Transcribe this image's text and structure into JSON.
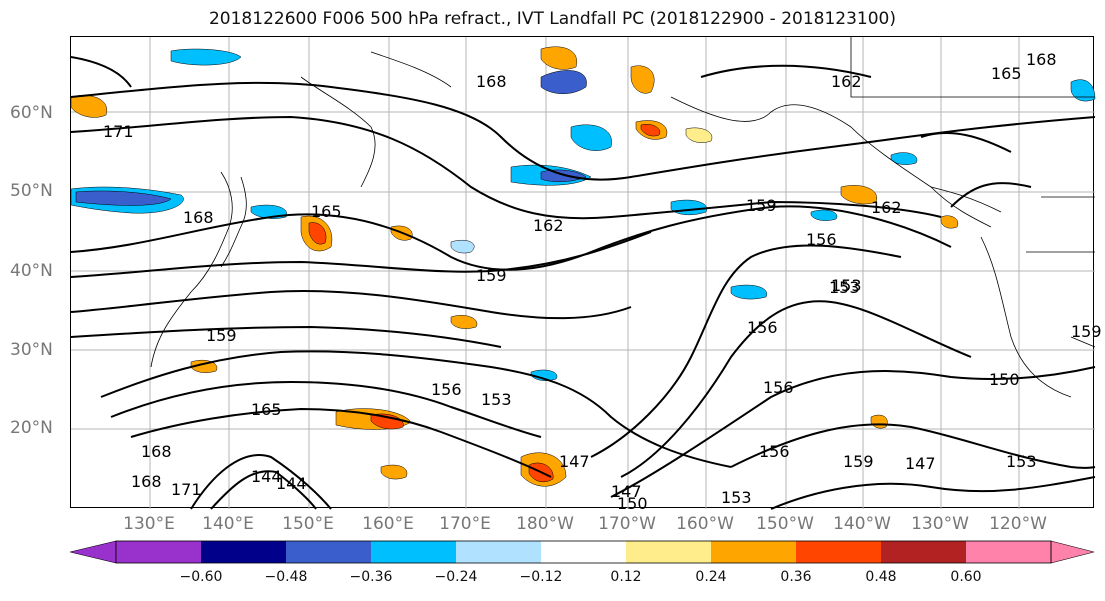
{
  "title": "2018122600 F006 500 hPa refract., IVT Landfall PC (2018122900 - 2018123100)",
  "lat_labels": [
    "60°N",
    "50°N",
    "40°N",
    "30°N",
    "20°N"
  ],
  "lon_labels": [
    "130°E",
    "140°E",
    "150°E",
    "160°E",
    "170°E",
    "180°W",
    "170°W",
    "160°W",
    "150°W",
    "140°W",
    "130°W",
    "120°W"
  ],
  "contour_labels": [
    "168",
    "165",
    "162",
    "171",
    "168",
    "165",
    "162",
    "159",
    "159",
    "156",
    "153",
    "159",
    "156",
    "153",
    "150",
    "156",
    "147",
    "147",
    "150",
    "156",
    "159",
    "147",
    "153",
    "168",
    "171",
    "144",
    "144",
    "153",
    "156",
    "165",
    "168",
    "159",
    "153",
    "162",
    "168"
  ],
  "colorbar": {
    "ticks": [
      "−0.60",
      "−0.48",
      "−0.36",
      "−0.24",
      "−0.12",
      "0.12",
      "0.24",
      "0.36",
      "0.48",
      "0.60"
    ],
    "colors": [
      "#9932cc",
      "#00008b",
      "#3a5fcd",
      "#00bfff",
      "#b0e2ff",
      "#ffffff",
      "#ffec8b",
      "#ffa500",
      "#ff4500",
      "#b22222",
      "#ff82ab"
    ]
  }
}
